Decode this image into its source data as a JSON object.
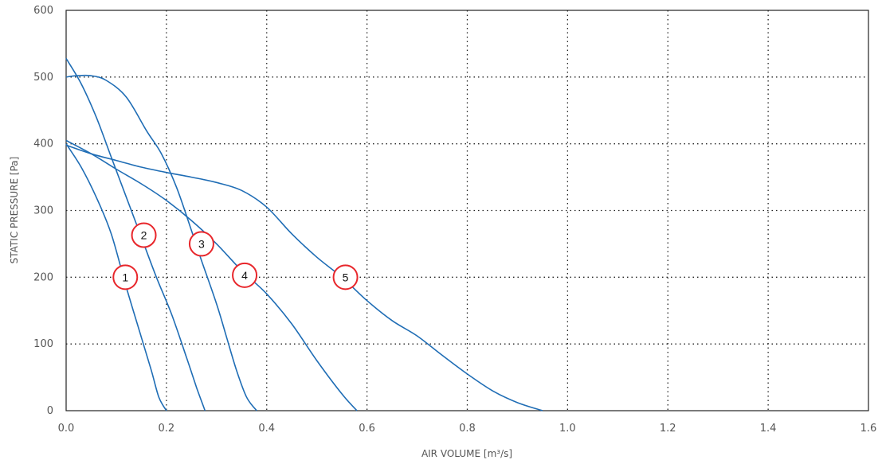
{
  "chart_data": {
    "type": "line",
    "title": "",
    "xlabel": "AIR VOLUME [m³/s]",
    "ylabel": "STATIC PRESSURE [Pa]",
    "xlim": [
      0,
      1.6
    ],
    "ylim": [
      0,
      600
    ],
    "grid": true,
    "x_ticks": [
      "0.0",
      "0.2",
      "0.4",
      "0.6",
      "0.8",
      "1.0",
      "1.2",
      "1.4",
      "1.6"
    ],
    "y_ticks": [
      "0",
      "100",
      "200",
      "300",
      "400",
      "500",
      "600"
    ],
    "colors": {
      "curve": "#1f6db5",
      "marker": "#e8262b"
    },
    "series": [
      {
        "name": "1",
        "label_at": [
          0.118,
          200
        ],
        "x": [
          0,
          0.03,
          0.06,
          0.09,
          0.12,
          0.15,
          0.17,
          0.185,
          0.2
        ],
        "y": [
          400,
          365,
          320,
          265,
          185,
          110,
          60,
          20,
          0
        ]
      },
      {
        "name": "2",
        "label_at": [
          0.155,
          263
        ],
        "x": [
          0,
          0.03,
          0.06,
          0.09,
          0.12,
          0.15,
          0.18,
          0.21,
          0.24,
          0.26,
          0.277
        ],
        "y": [
          528,
          490,
          440,
          380,
          320,
          260,
          200,
          145,
          80,
          35,
          0
        ]
      },
      {
        "name": "3",
        "label_at": [
          0.27,
          250
        ],
        "x": [
          0,
          0.02,
          0.05,
          0.08,
          0.12,
          0.16,
          0.19,
          0.22,
          0.25,
          0.27,
          0.3,
          0.32,
          0.34,
          0.36,
          0.38
        ],
        "y": [
          500,
          502,
          502,
          495,
          470,
          420,
          385,
          335,
          270,
          225,
          160,
          110,
          60,
          20,
          0
        ]
      },
      {
        "name": "4",
        "label_at": [
          0.356,
          203
        ],
        "x": [
          0,
          0.05,
          0.1,
          0.15,
          0.2,
          0.25,
          0.3,
          0.35,
          0.4,
          0.45,
          0.5,
          0.55,
          0.58
        ],
        "y": [
          405,
          385,
          362,
          340,
          315,
          285,
          250,
          210,
          175,
          130,
          75,
          25,
          0
        ]
      },
      {
        "name": "5",
        "label_at": [
          0.557,
          200
        ],
        "x": [
          0,
          0.05,
          0.1,
          0.15,
          0.2,
          0.25,
          0.3,
          0.35,
          0.4,
          0.45,
          0.5,
          0.55,
          0.6,
          0.65,
          0.7,
          0.75,
          0.8,
          0.85,
          0.9,
          0.95
        ],
        "y": [
          398,
          385,
          375,
          365,
          357,
          350,
          342,
          330,
          305,
          265,
          230,
          200,
          165,
          135,
          112,
          83,
          55,
          30,
          12,
          0
        ]
      }
    ]
  }
}
